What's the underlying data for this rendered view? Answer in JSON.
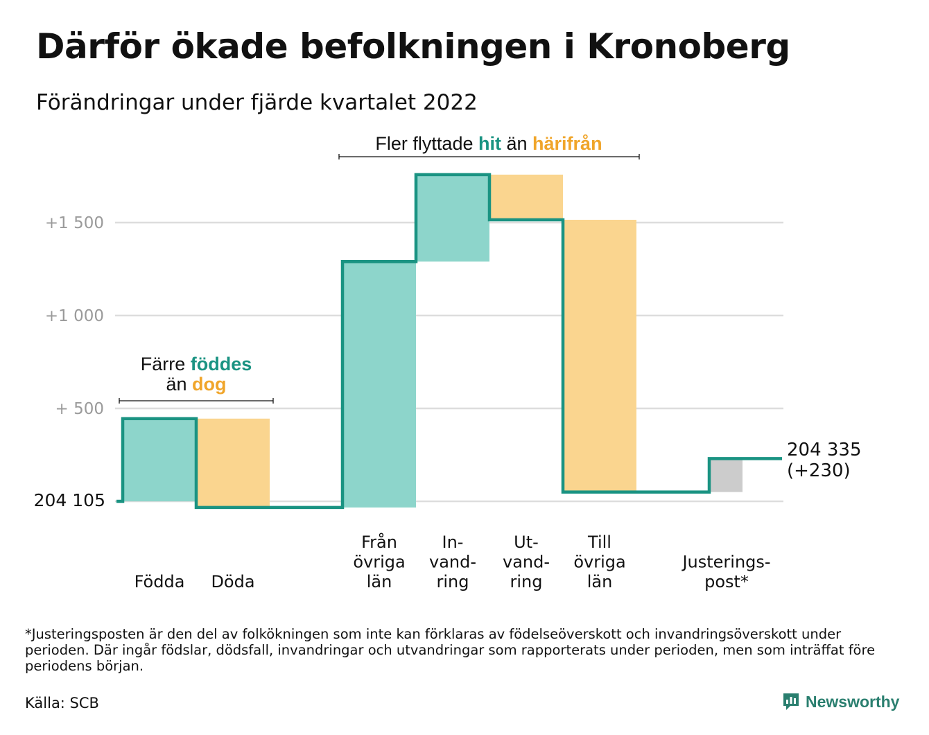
{
  "title": "Därför ökade befolkningen i Kronoberg",
  "subtitle": "Förändringar under fjärde kvartalet 2022",
  "colors": {
    "increase": "#8dd5cb",
    "decrease": "#fad58f",
    "adjustment": "#cccccc",
    "line": "#1a9382",
    "teal_text": "#1a9382",
    "orange_text": "#f0a52a",
    "grid": "#dddddd",
    "tick_text": "#9a9a9a"
  },
  "annotations": {
    "birth_death": {
      "line1_prefix": "Färre ",
      "line1_highlight": "föddes",
      "line2_prefix": "än ",
      "line2_highlight": "dog"
    },
    "migration": {
      "prefix": "Fler flyttade ",
      "highlight1": "hit",
      "middle": " än ",
      "highlight2": "härifrån"
    }
  },
  "chart_data": {
    "type": "waterfall",
    "start_label": "204 105",
    "start_value": 204105,
    "end_label_line1": "204 335",
    "end_label_line2": "(+230)",
    "end_value": 204335,
    "y_ticks": [
      {
        "value": 1500,
        "label": "+1 500"
      },
      {
        "value": 1000,
        "label": "+1 000"
      },
      {
        "value": 500,
        "label": "+ 500"
      }
    ],
    "ylim": [
      -50,
      1780
    ],
    "steps": [
      {
        "label": [
          "Födda"
        ],
        "change": 445,
        "kind": "increase"
      },
      {
        "label": [
          "Döda"
        ],
        "change": -478,
        "kind": "decrease"
      },
      {
        "label": [
          "Från",
          "övriga",
          "län"
        ],
        "change": 1323,
        "kind": "increase"
      },
      {
        "label": [
          "In-",
          "vand-",
          "ring"
        ],
        "change": 468,
        "kind": "increase"
      },
      {
        "label": [
          "Ut-",
          "vand-",
          "ring"
        ],
        "change": -243,
        "kind": "decrease"
      },
      {
        "label": [
          "Till",
          "övriga",
          "län"
        ],
        "change": -1465,
        "kind": "decrease"
      },
      {
        "label": [
          "Justerings-",
          "post*"
        ],
        "change": 180,
        "kind": "adjustment"
      }
    ]
  },
  "footnote": "*Justeringsposten är den del av folkökningen som inte kan förklaras av födelseöverskott och invandringsöverskott under perioden. Där ingår födslar, dödsfall, invandringar och utvandringar som rapporterats under perioden, men som inträffat före periodens början.",
  "source": "Källa: SCB",
  "logo_text": "Newsworthy"
}
